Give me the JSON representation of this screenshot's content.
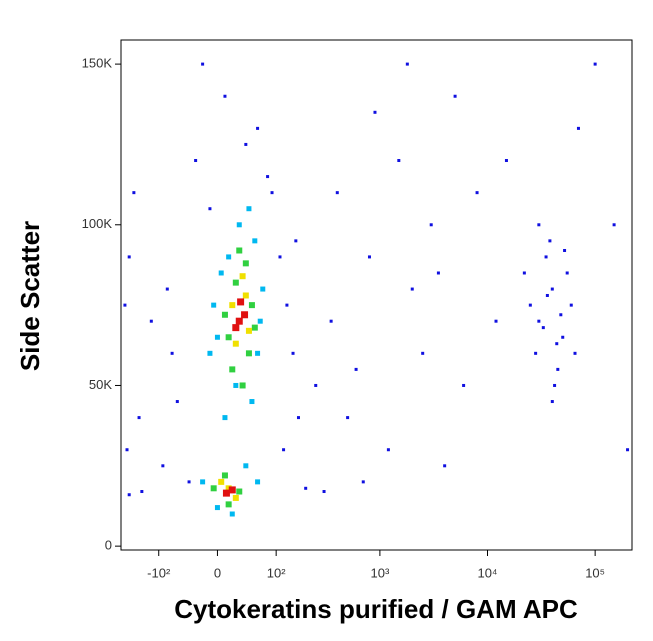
{
  "chart_data": {
    "type": "scatter",
    "x_label": "Cytokeratins purified / GAM APC",
    "y_label": "Side Scatter",
    "x_scale": "logicle",
    "xlim": [
      -240,
      220000
    ],
    "ylim": [
      -1200,
      157500
    ],
    "xticks": [
      {
        "value": -100,
        "label": "-10²"
      },
      0,
      {
        "value": 100,
        "label": "10²"
      },
      {
        "value": 1000,
        "label": "10³"
      },
      {
        "value": 10000,
        "label": "10⁴"
      },
      {
        "value": 100000,
        "label": "10⁵"
      }
    ],
    "yticks": [
      0,
      {
        "value": 50000,
        "label": "50K"
      },
      {
        "value": 100000,
        "label": "100K"
      },
      {
        "value": 150000,
        "label": "150K"
      }
    ],
    "series": [
      {
        "color": "#1010e0",
        "x": [
          -40,
          120,
          -60,
          150,
          -80,
          160,
          90,
          -30,
          60,
          10,
          -20,
          40,
          130,
          -70,
          170,
          -90,
          200,
          -150,
          -200,
          300,
          250,
          -120,
          80,
          -10,
          110,
          500,
          800,
          1500,
          2500,
          3000,
          1200,
          5000,
          700,
          2000,
          400,
          6000,
          8000,
          1800,
          350,
          900,
          4000,
          600,
          3500,
          15000,
          100000,
          150000,
          -200,
          -220,
          -180,
          -160,
          -210,
          200000,
          70000,
          12000,
          30000,
          40000,
          50000,
          25000,
          35000,
          45000,
          55000,
          28000,
          60000,
          38000,
          42000,
          33000,
          48000,
          22000,
          65000,
          36000,
          52000,
          44000,
          30000,
          40000
        ],
        "y": [
          20000,
          30000,
          45000,
          60000,
          80000,
          95000,
          110000,
          120000,
          130000,
          140000,
          150000,
          125000,
          75000,
          60000,
          40000,
          25000,
          18000,
          17000,
          16000,
          17000,
          50000,
          70000,
          115000,
          105000,
          90000,
          40000,
          90000,
          120000,
          60000,
          100000,
          30000,
          140000,
          20000,
          80000,
          110000,
          50000,
          110000,
          150000,
          70000,
          135000,
          25000,
          55000,
          85000,
          120000,
          150000,
          100000,
          90000,
          75000,
          110000,
          40000,
          30000,
          30000,
          130000,
          70000,
          70000,
          80000,
          65000,
          75000,
          90000,
          55000,
          85000,
          60000,
          75000,
          95000,
          50000,
          68000,
          72000,
          85000,
          60000,
          78000,
          92000,
          63000,
          100000,
          45000
        ]
      },
      {
        "color": "#00b8f0",
        "x": [
          10,
          50,
          20,
          60,
          0,
          70,
          5,
          55,
          30,
          15,
          -10,
          45,
          25,
          65,
          -5,
          -20,
          40,
          0,
          20,
          60
        ],
        "y": [
          40000,
          45000,
          55000,
          60000,
          65000,
          80000,
          85000,
          95000,
          100000,
          90000,
          60000,
          105000,
          50000,
          70000,
          75000,
          20000,
          25000,
          12000,
          10000,
          20000
        ]
      },
      {
        "color": "#30d040",
        "x": [
          20,
          45,
          15,
          50,
          25,
          40,
          10,
          55,
          30,
          -5,
          30,
          10,
          15,
          35
        ],
        "y": [
          55000,
          60000,
          65000,
          75000,
          82000,
          88000,
          72000,
          68000,
          92000,
          18000,
          17000,
          22000,
          13000,
          50000
        ]
      },
      {
        "color": "#f0e000",
        "x": [
          25,
          40,
          20,
          35,
          5,
          25,
          45,
          15
        ],
        "y": [
          63000,
          78000,
          75000,
          84000,
          20000,
          15000,
          67000,
          18000
        ]
      },
      {
        "color": "#e01010",
        "x": [
          30,
          38,
          25,
          32,
          12,
          20
        ],
        "y": [
          70000,
          72000,
          68000,
          76000,
          16500,
          17500
        ]
      }
    ]
  }
}
